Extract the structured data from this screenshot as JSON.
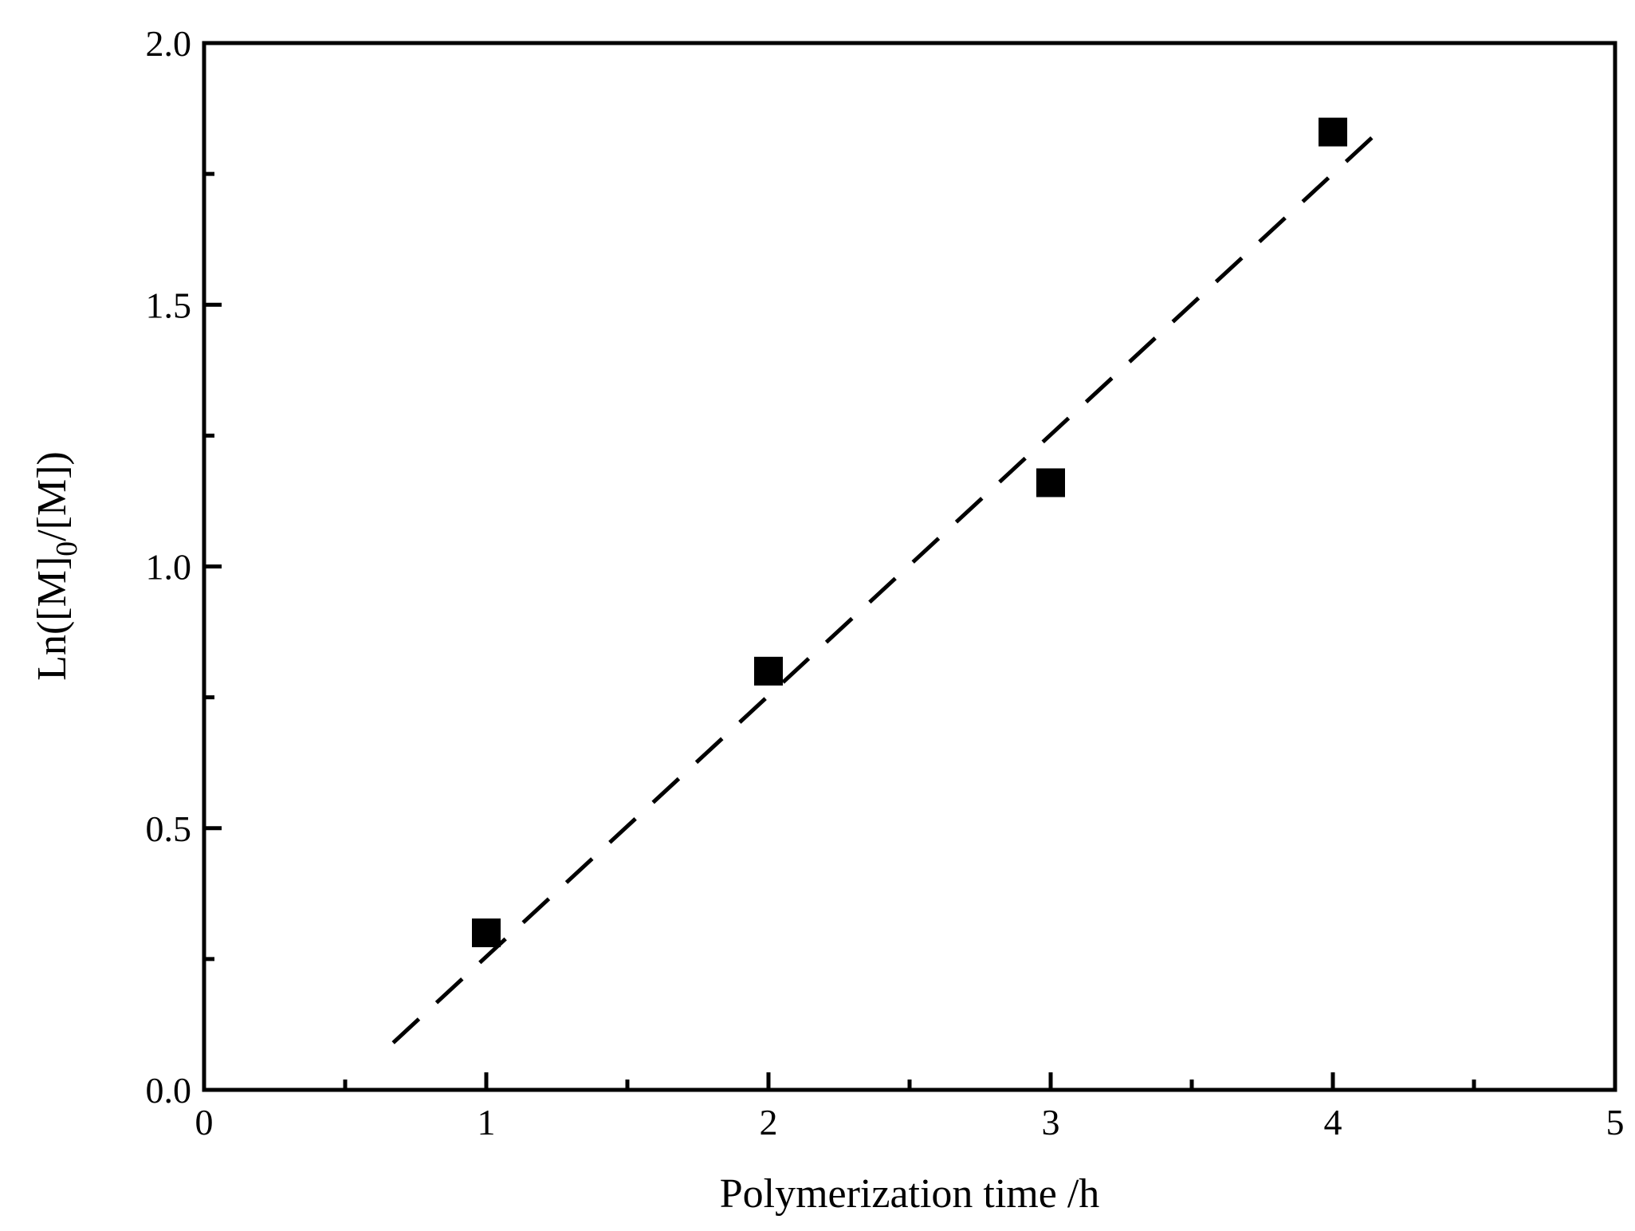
{
  "chart_data": {
    "type": "scatter",
    "title": "",
    "xlabel": "Polymerization time /h",
    "ylabel": {
      "prefix": "Ln([M]",
      "subscript": "0",
      "suffix": "/[M])"
    },
    "xlim": [
      0,
      5
    ],
    "ylim": [
      0,
      2.0
    ],
    "x_ticks": [
      "0",
      "1",
      "2",
      "3",
      "4",
      "5"
    ],
    "y_ticks": [
      "0.0",
      "0.5",
      "1.0",
      "1.5",
      "2.0"
    ],
    "grid": false,
    "legend": "none",
    "series": [
      {
        "marker": "square",
        "color": "#000000",
        "x": [
          1,
          2,
          3,
          4
        ],
        "y": [
          0.3,
          0.8,
          1.16,
          1.83
        ]
      }
    ],
    "fit_line": {
      "style": "dashed",
      "color": "#000000",
      "x": [
        0.67,
        4.18
      ],
      "y": [
        0.09,
        1.84
      ]
    }
  }
}
